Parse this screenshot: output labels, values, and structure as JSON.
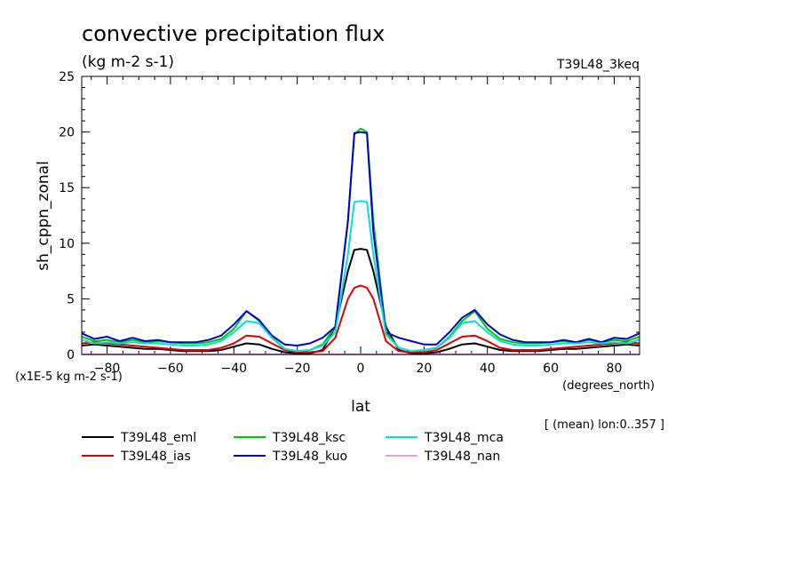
{
  "header": {
    "title": "convective precipitation flux",
    "subtitle": "(kg m-2 s-1)",
    "run": "T39L48_3keq"
  },
  "notes": {
    "scale": "(x1E-5 kg m-2 s-1)",
    "mean": "[ (mean) lon:0..357 ]"
  },
  "chart_data": {
    "type": "line",
    "title": "convective precipitation flux",
    "xlabel": "lat",
    "xunit": "(degrees_north)",
    "ylabel": "sh_cppn_zonal",
    "xlim": [
      -88,
      88
    ],
    "ylim": [
      0,
      25
    ],
    "xticks": [
      -80,
      -60,
      -40,
      -20,
      0,
      20,
      40,
      60,
      80
    ],
    "yticks": [
      0,
      5,
      10,
      15,
      20,
      25
    ],
    "x": [
      -88,
      -84,
      -80,
      -76,
      -72,
      -68,
      -64,
      -60,
      -56,
      -52,
      -48,
      -44,
      -40,
      -36,
      -32,
      -28,
      -24,
      -20,
      -16,
      -12,
      -8,
      -4,
      -2,
      0,
      2,
      4,
      8,
      12,
      16,
      20,
      24,
      28,
      32,
      36,
      40,
      44,
      48,
      52,
      56,
      60,
      64,
      68,
      72,
      76,
      80,
      84,
      88
    ],
    "series": [
      {
        "name": "T39L48_eml",
        "color": "#000000",
        "values": [
          0.8,
          0.9,
          0.8,
          0.7,
          0.6,
          0.5,
          0.5,
          0.4,
          0.3,
          0.3,
          0.3,
          0.4,
          0.7,
          1.0,
          0.9,
          0.5,
          0.2,
          0.1,
          0.1,
          0.4,
          2.5,
          7.5,
          9.4,
          9.5,
          9.4,
          7.5,
          2.5,
          0.4,
          0.1,
          0.1,
          0.2,
          0.5,
          0.9,
          1.0,
          0.7,
          0.4,
          0.3,
          0.3,
          0.3,
          0.4,
          0.5,
          0.5,
          0.6,
          0.7,
          0.8,
          0.9,
          0.8
        ]
      },
      {
        "name": "T39L48_ias",
        "color": "#e00000",
        "values": [
          1.0,
          1.1,
          1.0,
          0.9,
          0.8,
          0.7,
          0.6,
          0.5,
          0.4,
          0.4,
          0.4,
          0.6,
          1.0,
          1.7,
          1.6,
          1.0,
          0.4,
          0.2,
          0.2,
          0.3,
          1.5,
          5.0,
          6.0,
          6.2,
          6.0,
          5.0,
          1.2,
          0.3,
          0.2,
          0.2,
          0.4,
          1.0,
          1.6,
          1.7,
          1.2,
          0.6,
          0.4,
          0.4,
          0.4,
          0.5,
          0.6,
          0.7,
          0.8,
          0.9,
          1.0,
          1.1,
          1.0
        ]
      },
      {
        "name": "T39L48_ksc",
        "color": "#00c800",
        "values": [
          1.6,
          1.2,
          1.3,
          1.1,
          1.3,
          1.1,
          1.2,
          1.1,
          1.0,
          1.0,
          1.1,
          1.4,
          2.3,
          3.9,
          3.0,
          1.6,
          0.5,
          0.3,
          0.4,
          0.9,
          2.5,
          12.0,
          19.8,
          20.3,
          20.0,
          12.0,
          2.0,
          0.6,
          0.3,
          0.4,
          0.6,
          1.6,
          3.0,
          3.9,
          2.3,
          1.4,
          1.1,
          1.0,
          1.0,
          1.1,
          1.2,
          1.1,
          1.3,
          1.1,
          1.3,
          1.2,
          1.6
        ]
      },
      {
        "name": "T39L48_kuo",
        "color": "#0000c8",
        "values": [
          1.9,
          1.4,
          1.6,
          1.2,
          1.5,
          1.2,
          1.3,
          1.1,
          1.1,
          1.1,
          1.3,
          1.7,
          2.7,
          3.9,
          3.1,
          1.7,
          0.9,
          0.8,
          1.0,
          1.5,
          2.5,
          12.0,
          19.9,
          20.0,
          19.9,
          11.0,
          2.0,
          1.5,
          1.2,
          0.9,
          0.9,
          2.0,
          3.3,
          4.0,
          2.7,
          1.8,
          1.3,
          1.1,
          1.1,
          1.1,
          1.3,
          1.1,
          1.4,
          1.1,
          1.5,
          1.4,
          1.9
        ]
      },
      {
        "name": "T39L48_mca",
        "color": "#00e0e0",
        "values": [
          1.3,
          1.0,
          1.1,
          1.0,
          1.1,
          1.0,
          1.0,
          0.9,
          0.8,
          0.8,
          0.9,
          1.2,
          2.0,
          3.0,
          2.8,
          1.5,
          0.5,
          0.3,
          0.4,
          0.8,
          2.0,
          9.0,
          13.7,
          13.8,
          13.7,
          9.0,
          1.8,
          0.6,
          0.3,
          0.4,
          0.6,
          1.5,
          2.8,
          3.0,
          2.0,
          1.2,
          0.9,
          0.8,
          0.8,
          0.9,
          1.0,
          1.0,
          1.1,
          1.0,
          1.1,
          1.0,
          1.3
        ]
      },
      {
        "name": "T39L48_nan",
        "color": "#e8a0e0",
        "values": [
          0,
          0,
          0,
          0,
          0,
          0,
          0,
          0,
          0,
          0,
          0,
          0,
          0,
          0,
          0,
          0,
          0,
          0,
          0,
          0,
          0,
          0,
          0,
          0,
          0,
          0,
          0,
          0,
          0,
          0,
          0,
          0,
          0,
          0,
          0,
          0,
          0,
          0,
          0,
          0,
          0,
          0,
          0,
          0,
          0,
          0,
          0
        ]
      }
    ],
    "legend_placement": "bottom",
    "grid": false
  }
}
